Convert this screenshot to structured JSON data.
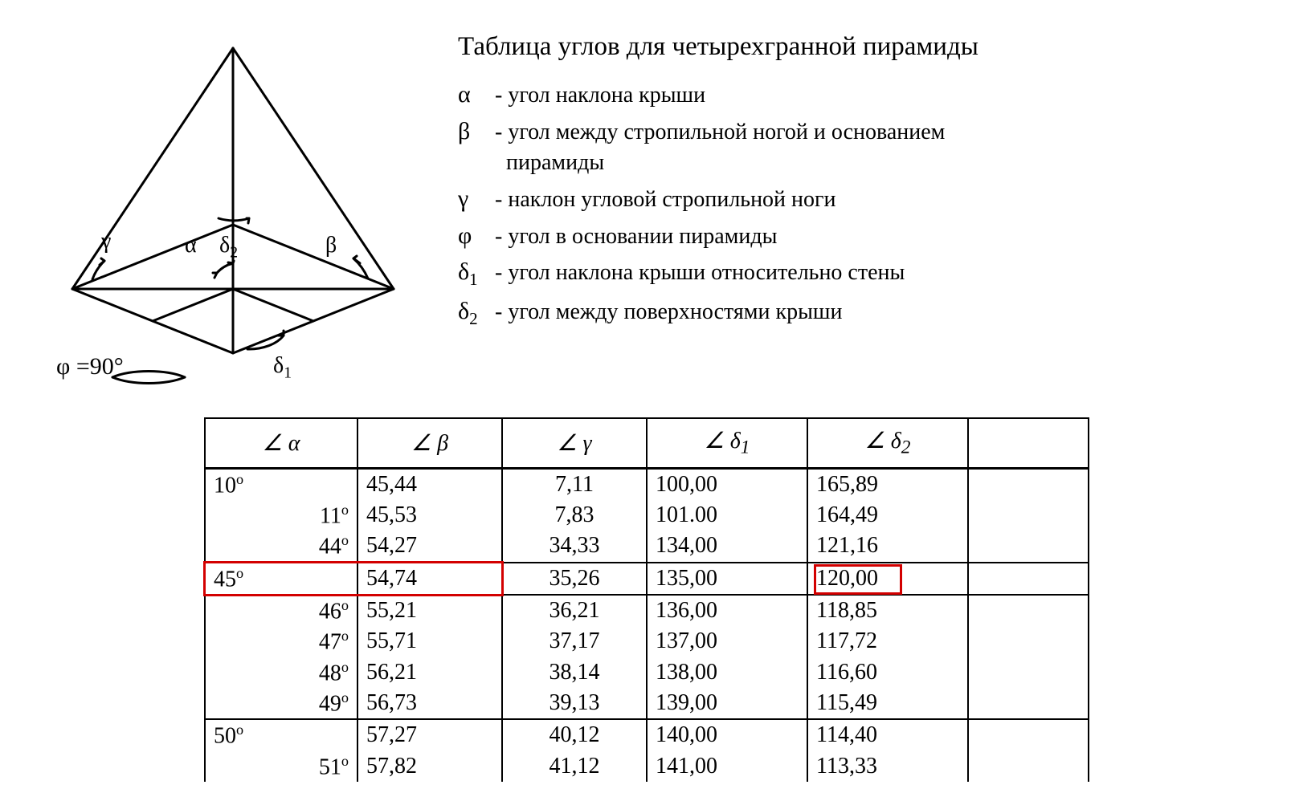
{
  "title": "Таблица углов для четырехгранной пирамиды",
  "legend": {
    "alpha": {
      "sym": "α",
      "text": "угол наклона крыши"
    },
    "beta": {
      "sym": "β",
      "text": "угол между стропильной ногой и основанием",
      "text2": "пирамиды"
    },
    "gamma": {
      "sym": "γ",
      "text": "наклон угловой стропильной ноги"
    },
    "phi": {
      "sym": "φ",
      "text": "угол в основании пирамиды"
    },
    "d1": {
      "sym": "δ",
      "sub": "1",
      "text": "угол наклона крыши относительно стены"
    },
    "d2": {
      "sym": "δ",
      "sub": "2",
      "text": "угол между поверхностями крыши"
    }
  },
  "diagram": {
    "phi_label": "φ =90°",
    "labels": {
      "gamma": "γ",
      "alpha": "α",
      "d2": "δ",
      "d2s": "2",
      "beta": "β",
      "d1": "δ",
      "d1s": "1"
    },
    "stroke": "#000000",
    "stroke_width": 3
  },
  "table": {
    "headers": {
      "alpha": "∠ α",
      "beta": "∠ β",
      "gamma": "∠ γ",
      "d1": "∠ δ",
      "d1sub": "1",
      "d2": "∠ δ",
      "d2sub": "2"
    },
    "rows": [
      {
        "a": "10",
        "align": "left",
        "b": "45,44",
        "g": "7,11",
        "d1": "100,00",
        "d2": "165,89",
        "rule_above": true
      },
      {
        "a": "11",
        "align": "right",
        "b": "45,53",
        "g": "7,83",
        "d1": "101.00",
        "d2": "164,49"
      },
      {
        "a": "44",
        "align": "right",
        "b": "54,27",
        "g": "34,33",
        "d1": "134,00",
        "d2": "121,16"
      },
      {
        "a": "45",
        "align": "left",
        "b": "54,74",
        "g": "35,26",
        "d1": "135,00",
        "d2": "120,00",
        "rule_above": true,
        "rule_below": true,
        "highlight": true
      },
      {
        "a": "46",
        "align": "right",
        "b": "55,21",
        "g": "36,21",
        "d1": "136,00",
        "d2": "118,85"
      },
      {
        "a": "47",
        "align": "right",
        "b": "55,71",
        "g": "37,17",
        "d1": "137,00",
        "d2": "117,72"
      },
      {
        "a": "48",
        "align": "right",
        "b": "56,21",
        "g": "38,14",
        "d1": "138,00",
        "d2": "116,60"
      },
      {
        "a": "49",
        "align": "right",
        "b": "56,73",
        "g": "39,13",
        "d1": "139,00",
        "d2": "115,49"
      },
      {
        "a": "50",
        "align": "left",
        "b": "57,27",
        "g": "40,12",
        "d1": "140,00",
        "d2": "114,40",
        "rule_above": true
      },
      {
        "a": "51",
        "align": "right",
        "b": "57,82",
        "g": "41,12",
        "d1": "141,00",
        "d2": "113,33",
        "cut": true
      }
    ],
    "highlight_color": "#d30000",
    "border_color": "#000000",
    "font_size_pt": 21
  }
}
